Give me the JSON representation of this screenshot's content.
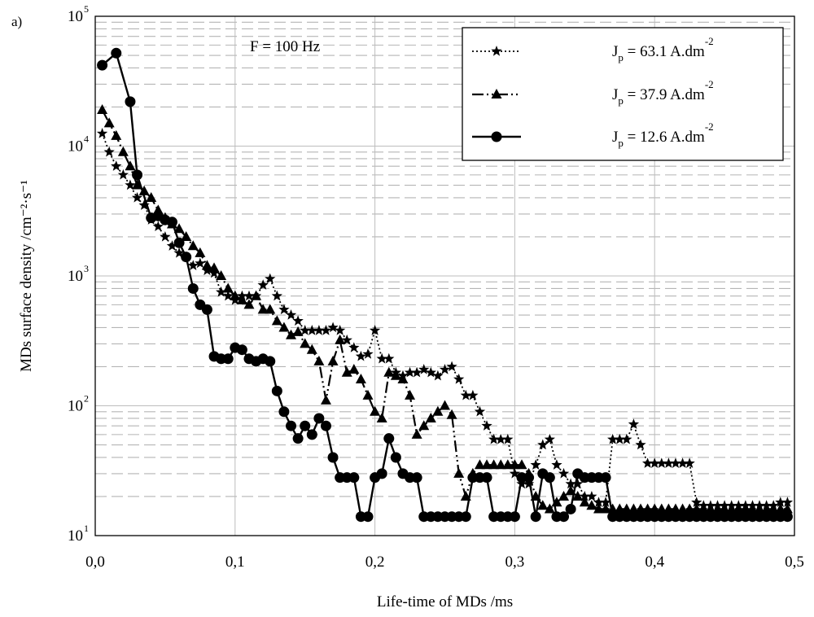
{
  "panel_label": "a)",
  "chart_data": {
    "type": "line",
    "title": "",
    "annotation": "F = 100 Hz",
    "xlabel": "Life-time of MDs /ms",
    "ylabel": "MDs surface density /cm⁻²·s⁻¹",
    "x_scale": "linear",
    "y_scale": "log",
    "xlim": [
      0.0,
      0.5
    ],
    "ylim": [
      10,
      100000
    ],
    "x_ticks": [
      0.0,
      0.1,
      0.2,
      0.3,
      0.4,
      0.5
    ],
    "x_tick_labels": [
      "0,0",
      "0,1",
      "0,2",
      "0,3",
      "0,4",
      "0,5"
    ],
    "y_ticks": [
      10,
      100,
      1000,
      10000,
      100000
    ],
    "y_tick_bases": [
      "10",
      "10",
      "10",
      "10",
      "10"
    ],
    "y_tick_exps": [
      "1",
      "2",
      "3",
      "4",
      "5"
    ],
    "grid": true,
    "legend_position": "top-right",
    "series": [
      {
        "name": "Jp = 63.1 A.dm-2",
        "label_main": "J",
        "label_sub": "p",
        "label_rest": " = 63.1 A.dm",
        "label_sup": "-2",
        "line": "dotted",
        "marker": "star",
        "x": [
          0.005,
          0.01,
          0.015,
          0.02,
          0.025,
          0.03,
          0.035,
          0.04,
          0.045,
          0.05,
          0.055,
          0.06,
          0.065,
          0.07,
          0.075,
          0.08,
          0.085,
          0.09,
          0.095,
          0.1,
          0.105,
          0.11,
          0.115,
          0.12,
          0.125,
          0.13,
          0.135,
          0.14,
          0.145,
          0.15,
          0.155,
          0.16,
          0.165,
          0.17,
          0.175,
          0.18,
          0.185,
          0.19,
          0.195,
          0.2,
          0.205,
          0.21,
          0.215,
          0.22,
          0.225,
          0.23,
          0.235,
          0.24,
          0.245,
          0.25,
          0.255,
          0.26,
          0.265,
          0.27,
          0.275,
          0.28,
          0.285,
          0.29,
          0.295,
          0.3,
          0.305,
          0.31,
          0.315,
          0.32,
          0.325,
          0.33,
          0.335,
          0.34,
          0.345,
          0.35,
          0.355,
          0.36,
          0.365,
          0.37,
          0.375,
          0.38,
          0.385,
          0.39,
          0.395,
          0.4,
          0.405,
          0.41,
          0.415,
          0.42,
          0.425,
          0.43,
          0.435,
          0.44,
          0.445,
          0.45,
          0.455,
          0.46,
          0.465,
          0.47,
          0.475,
          0.48,
          0.485,
          0.49,
          0.495
        ],
        "y": [
          12500,
          9000,
          7000,
          6000,
          5000,
          4000,
          3500,
          2700,
          2400,
          2000,
          1700,
          1500,
          1400,
          1200,
          1250,
          1100,
          1050,
          750,
          700,
          650,
          700,
          700,
          700,
          850,
          950,
          700,
          550,
          500,
          450,
          380,
          380,
          380,
          380,
          400,
          380,
          320,
          280,
          240,
          250,
          380,
          230,
          230,
          180,
          170,
          180,
          180,
          190,
          180,
          170,
          190,
          200,
          160,
          120,
          120,
          90,
          70,
          55,
          55,
          55,
          30,
          25,
          25,
          35,
          50,
          55,
          35,
          30,
          25,
          25,
          20,
          20,
          18,
          18,
          55,
          55,
          55,
          72,
          50,
          36,
          36,
          36,
          36,
          36,
          36,
          36,
          18,
          17,
          17,
          17,
          17,
          17,
          17,
          17,
          17,
          17,
          17,
          17,
          18,
          18
        ]
      },
      {
        "name": "Jp = 37.9 A.dm-2",
        "label_main": "J",
        "label_sub": "p",
        "label_rest": " = 37.9 A.dm",
        "label_sup": "-2",
        "line": "dash-dot-dot",
        "marker": "triangle",
        "x": [
          0.005,
          0.01,
          0.015,
          0.02,
          0.025,
          0.03,
          0.035,
          0.04,
          0.045,
          0.05,
          0.055,
          0.06,
          0.065,
          0.07,
          0.075,
          0.08,
          0.085,
          0.09,
          0.095,
          0.1,
          0.105,
          0.11,
          0.115,
          0.12,
          0.125,
          0.13,
          0.135,
          0.14,
          0.145,
          0.15,
          0.155,
          0.16,
          0.165,
          0.17,
          0.175,
          0.18,
          0.185,
          0.19,
          0.195,
          0.2,
          0.205,
          0.21,
          0.215,
          0.22,
          0.225,
          0.23,
          0.235,
          0.24,
          0.245,
          0.25,
          0.255,
          0.26,
          0.265,
          0.27,
          0.275,
          0.28,
          0.285,
          0.29,
          0.295,
          0.3,
          0.305,
          0.31,
          0.315,
          0.32,
          0.325,
          0.33,
          0.335,
          0.34,
          0.345,
          0.35,
          0.355,
          0.36,
          0.365,
          0.37,
          0.375,
          0.38,
          0.385,
          0.39,
          0.395,
          0.4,
          0.405,
          0.41,
          0.415,
          0.42,
          0.425,
          0.43,
          0.435,
          0.44,
          0.445,
          0.45,
          0.455,
          0.46,
          0.465,
          0.47,
          0.475,
          0.48,
          0.485,
          0.49,
          0.495
        ],
        "y": [
          19000,
          15000,
          12000,
          9000,
          7000,
          5000,
          4500,
          4000,
          3200,
          2800,
          2500,
          2300,
          2000,
          1700,
          1500,
          1200,
          1150,
          1000,
          800,
          700,
          650,
          600,
          700,
          550,
          550,
          450,
          400,
          350,
          370,
          300,
          270,
          220,
          110,
          220,
          320,
          180,
          190,
          160,
          120,
          90,
          80,
          180,
          170,
          160,
          120,
          60,
          70,
          80,
          90,
          100,
          85,
          30,
          20,
          30,
          35,
          35,
          35,
          35,
          35,
          35,
          35,
          30,
          20,
          17,
          16,
          18,
          20,
          22,
          20,
          18,
          17,
          16,
          16,
          16,
          16,
          16,
          16,
          16,
          16,
          16,
          16,
          16,
          16,
          16,
          16,
          16,
          16,
          16,
          16,
          16,
          16,
          16,
          16,
          16,
          16,
          16,
          16,
          16,
          16
        ]
      },
      {
        "name": "Jp = 12.6 A.dm-2",
        "label_main": "J",
        "label_sub": "p",
        "label_rest": " = 12.6 A.dm",
        "label_sup": "-2",
        "line": "solid",
        "marker": "circle",
        "x": [
          0.005,
          0.015,
          0.025,
          0.03,
          0.04,
          0.045,
          0.05,
          0.055,
          0.06,
          0.065,
          0.07,
          0.075,
          0.08,
          0.085,
          0.09,
          0.095,
          0.1,
          0.105,
          0.11,
          0.115,
          0.12,
          0.125,
          0.13,
          0.135,
          0.14,
          0.145,
          0.15,
          0.155,
          0.16,
          0.165,
          0.17,
          0.175,
          0.18,
          0.185,
          0.19,
          0.195,
          0.2,
          0.205,
          0.21,
          0.215,
          0.22,
          0.225,
          0.23,
          0.235,
          0.24,
          0.245,
          0.25,
          0.255,
          0.26,
          0.265,
          0.27,
          0.275,
          0.28,
          0.285,
          0.29,
          0.295,
          0.3,
          0.305,
          0.31,
          0.315,
          0.32,
          0.325,
          0.33,
          0.335,
          0.34,
          0.345,
          0.35,
          0.355,
          0.36,
          0.365,
          0.37,
          0.375,
          0.38,
          0.385,
          0.39,
          0.395,
          0.4,
          0.405,
          0.41,
          0.415,
          0.42,
          0.425,
          0.43,
          0.435,
          0.44,
          0.445,
          0.45,
          0.455,
          0.46,
          0.465,
          0.47,
          0.475,
          0.48,
          0.485,
          0.49,
          0.495
        ],
        "y": [
          42000,
          52000,
          22000,
          6000,
          2800,
          2900,
          2700,
          2600,
          1800,
          1400,
          800,
          600,
          550,
          240,
          230,
          230,
          280,
          270,
          230,
          220,
          230,
          220,
          130,
          90,
          70,
          56,
          70,
          60,
          80,
          70,
          40,
          28,
          28,
          28,
          14,
          14,
          28,
          30,
          56,
          40,
          30,
          28,
          28,
          14,
          14,
          14,
          14,
          14,
          14,
          14,
          28,
          28,
          28,
          14,
          14,
          14,
          14,
          28,
          28,
          14,
          30,
          28,
          14,
          14,
          16,
          30,
          28,
          28,
          28,
          28,
          14,
          14,
          14,
          14,
          14,
          14,
          14,
          14,
          14,
          14,
          14,
          14,
          14,
          14,
          14,
          14,
          14,
          14,
          14,
          14,
          14,
          14,
          14,
          14,
          14,
          14
        ]
      }
    ]
  }
}
